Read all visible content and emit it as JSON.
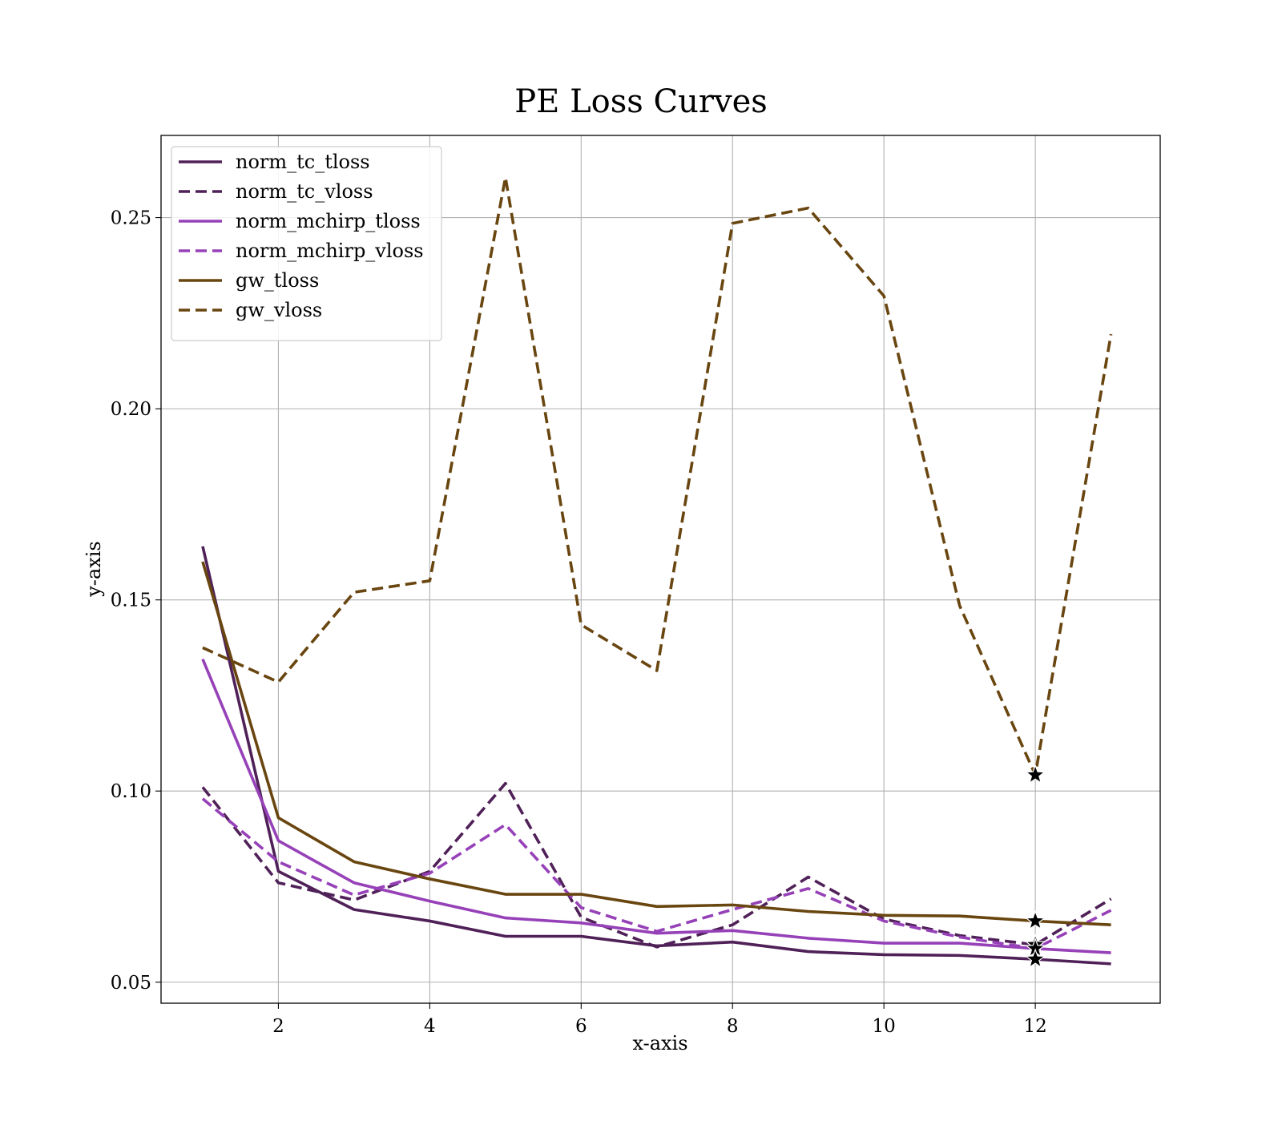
{
  "chart_data": {
    "type": "line",
    "title": "PE Loss Curves",
    "xlabel": "x-axis",
    "ylabel": "y-axis",
    "xlim": [
      0.45,
      13.65
    ],
    "ylim": [
      0.0445,
      0.2715
    ],
    "xticks": [
      2,
      4,
      6,
      8,
      10,
      12
    ],
    "yticks": [
      0.05,
      0.1,
      0.15,
      0.2,
      0.25
    ],
    "xtick_labels": [
      "2",
      "4",
      "6",
      "8",
      "10",
      "12"
    ],
    "ytick_labels": [
      "0.05",
      "0.10",
      "0.15",
      "0.20",
      "0.25"
    ],
    "grid": true,
    "legend_position": "top-left",
    "x": [
      1,
      2,
      3,
      4,
      5,
      6,
      7,
      8,
      9,
      10,
      11,
      12,
      13
    ],
    "series": [
      {
        "name": "norm_tc_tloss",
        "color": "#4f2158",
        "dashed": false,
        "values": [
          0.164,
          0.079,
          0.069,
          0.066,
          0.062,
          0.062,
          0.0595,
          0.0605,
          0.058,
          0.0572,
          0.057,
          0.056,
          0.0548
        ]
      },
      {
        "name": "norm_tc_vloss",
        "color": "#4f2158",
        "dashed": true,
        "values": [
          0.101,
          0.076,
          0.0715,
          0.079,
          0.102,
          0.067,
          0.0592,
          0.065,
          0.0775,
          0.0665,
          0.0622,
          0.0598,
          0.0718
        ]
      },
      {
        "name": "norm_mchirp_tloss",
        "color": "#9641b8",
        "dashed": false,
        "values": [
          0.1345,
          0.087,
          0.076,
          0.0712,
          0.0668,
          0.0655,
          0.0628,
          0.0635,
          0.0615,
          0.0602,
          0.0602,
          0.0588,
          0.0577
        ]
      },
      {
        "name": "norm_mchirp_vloss",
        "color": "#9641b8",
        "dashed": true,
        "values": [
          0.098,
          0.0815,
          0.0728,
          0.0785,
          0.0912,
          0.0695,
          0.0633,
          0.069,
          0.0745,
          0.066,
          0.0618,
          0.0588,
          0.0688
        ]
      },
      {
        "name": "gw_tloss",
        "color": "#694610",
        "dashed": false,
        "values": [
          0.16,
          0.093,
          0.0815,
          0.077,
          0.073,
          0.073,
          0.0698,
          0.0702,
          0.0685,
          0.0675,
          0.0673,
          0.066,
          0.065
        ]
      },
      {
        "name": "gw_vloss",
        "color": "#694610",
        "dashed": true,
        "values": [
          0.1375,
          0.1285,
          0.152,
          0.155,
          0.2605,
          0.1435,
          0.1315,
          0.2485,
          0.2525,
          0.2295,
          0.1485,
          0.1042,
          0.2195
        ]
      }
    ],
    "markers": [
      {
        "series": "gw_vloss",
        "x": 12,
        "y": 0.1042,
        "symbol": "star"
      },
      {
        "series": "gw_tloss",
        "x": 12,
        "y": 0.066,
        "symbol": "star"
      },
      {
        "series": "norm_tc_vloss",
        "x": 12,
        "y": 0.0598,
        "symbol": "star"
      },
      {
        "series": "norm_mchirp_vloss",
        "x": 12,
        "y": 0.0588,
        "symbol": "star"
      },
      {
        "series": "norm_tc_tloss",
        "x": 12,
        "y": 0.056,
        "symbol": "star"
      }
    ]
  }
}
